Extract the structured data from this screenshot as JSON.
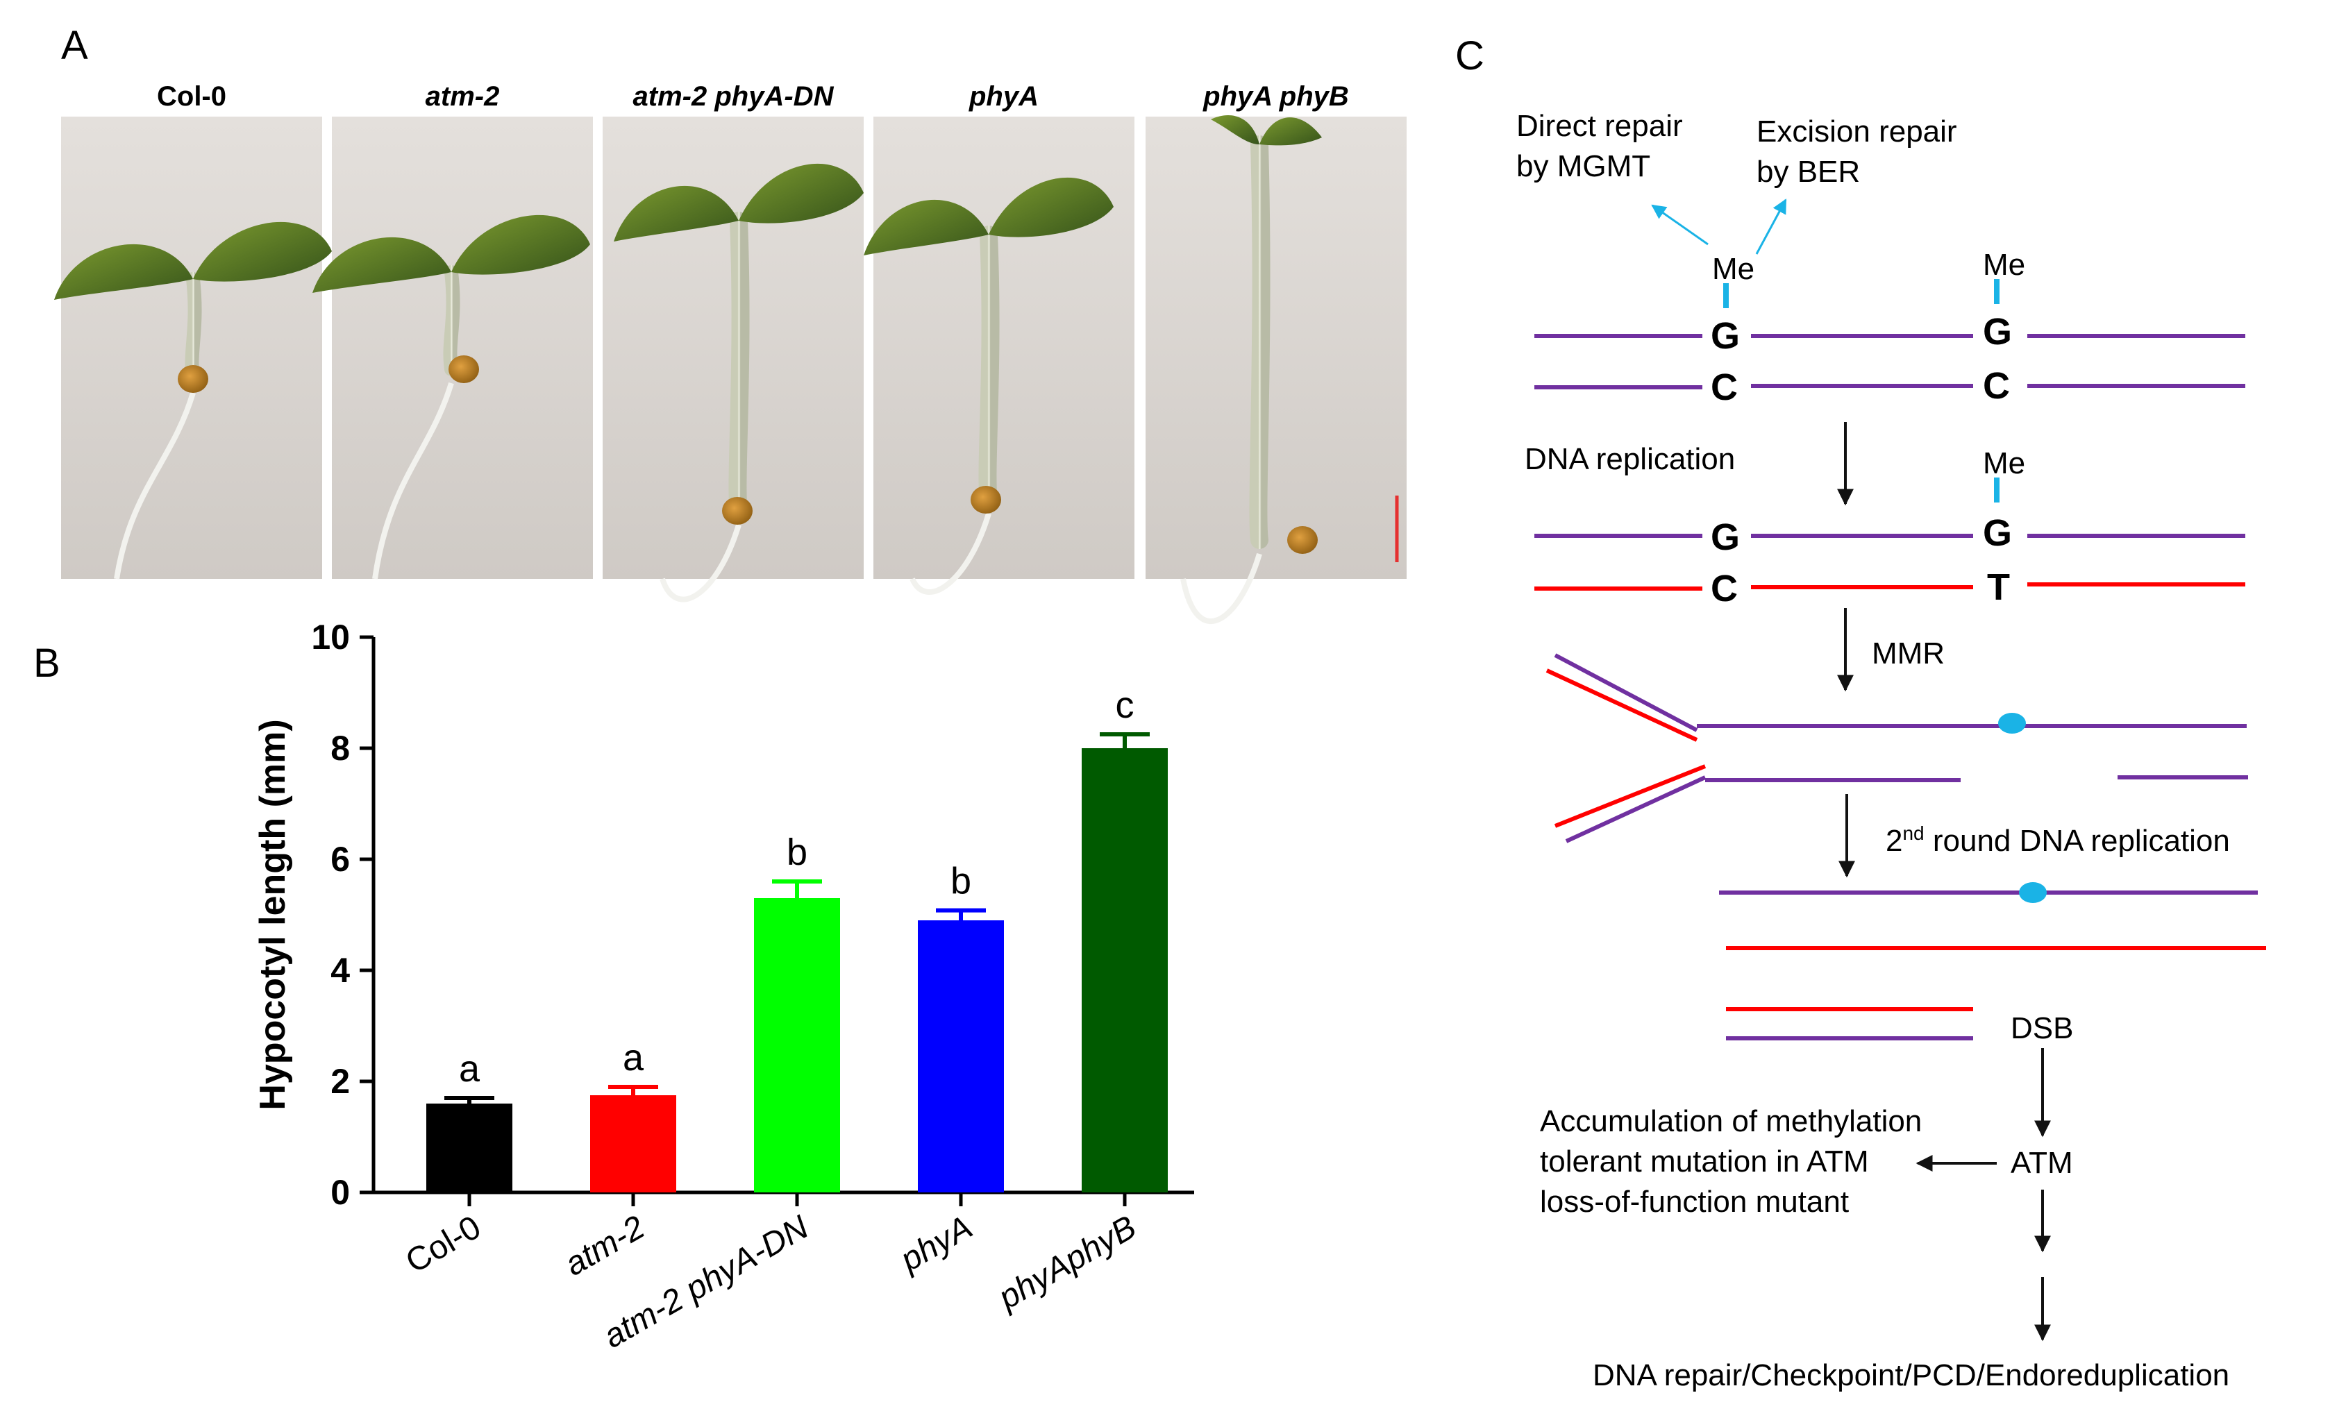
{
  "panels": {
    "A": {
      "label": "A",
      "seedlings": [
        {
          "name": "Col-0",
          "italic": false
        },
        {
          "name": "atm-2",
          "italic": true
        },
        {
          "name": "atm-2 phyA-DN",
          "italic": true
        },
        {
          "name": "phyA",
          "italic": true
        },
        {
          "name": "phyA phyB",
          "italic": true
        }
      ]
    },
    "B": {
      "label": "B",
      "chart_data": {
        "type": "bar",
        "title": "",
        "xlabel": "",
        "ylabel": "Hypocotyl length (mm)",
        "ylim": [
          0,
          10
        ],
        "yticks": [
          "0",
          "2",
          "4",
          "6",
          "8",
          "10"
        ],
        "categories": [
          "Col-0",
          "atm-2",
          "atm-2 phyA-DN",
          "phyA",
          "phyAphyB"
        ],
        "values": [
          1.6,
          1.75,
          5.3,
          4.9,
          8.0
        ],
        "errors": [
          0.1,
          0.15,
          0.3,
          0.18,
          0.25
        ],
        "significance": [
          "a",
          "a",
          "b",
          "b",
          "c"
        ],
        "colors": [
          "#000000",
          "#ff0000",
          "#00ff00",
          "#0000ff",
          "#005a00"
        ],
        "grid": false,
        "legend": "none"
      }
    },
    "C": {
      "label": "C",
      "direct_repair": [
        "Direct repair",
        "by MGMT"
      ],
      "excision_repair": [
        "Excision repair",
        "by BER"
      ],
      "me": "Me",
      "base_g": "G",
      "base_c": "C",
      "base_t": "T",
      "dna_replication": "DNA replication",
      "mmr": "MMR",
      "second_round_ord": "2",
      "second_round_sup": "nd",
      "second_round_rest": " round DNA replication",
      "dsb": "DSB",
      "atm": "ATM",
      "accumulation": [
        "Accumulation of methylation",
        "tolerant mutation in ATM",
        "loss-of-function mutant"
      ],
      "outcome": "DNA repair/Checkpoint/PCD/Endoreduplication",
      "colors": {
        "strand": "#7030a0",
        "new_strand": "#ff0000",
        "methyl": "#1ab3e6"
      }
    }
  }
}
